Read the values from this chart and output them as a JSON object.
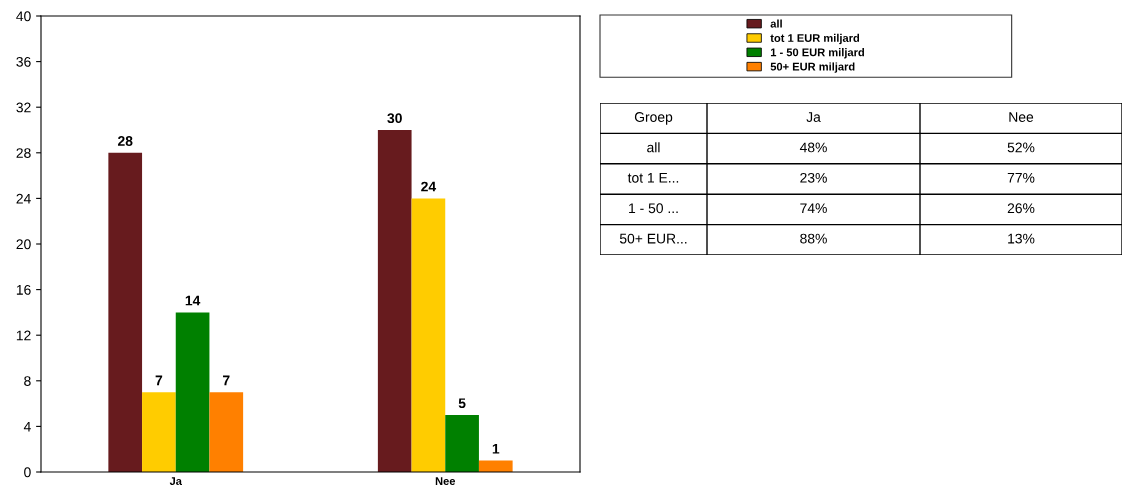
{
  "chart_data": [
    {
      "type": "bar",
      "categories": [
        "Ja",
        "Nee"
      ],
      "series": [
        {
          "name": "all",
          "color": "#671b1e",
          "values": [
            28,
            30
          ]
        },
        {
          "name": "tot 1 EUR miljard",
          "color": "#ffcc00",
          "values": [
            7,
            24
          ]
        },
        {
          "name": "1 - 50 EUR miljard",
          "color": "#008000",
          "values": [
            14,
            5
          ]
        },
        {
          "name": "50+ EUR miljard",
          "color": "#ff8000",
          "values": [
            7,
            1
          ]
        }
      ],
      "ylim": [
        0,
        40
      ],
      "yticks": [
        0,
        4,
        8,
        12,
        16,
        20,
        24,
        28,
        32,
        36,
        40
      ],
      "data_labels": true,
      "legend": "top right",
      "grid": false
    },
    {
      "type": "other",
      "ylabel": "Groep",
      "categories": [
        "Ja",
        "Nee"
      ],
      "y_categories": [
        "all",
        "tot 1 E...",
        "1 - 50 ...",
        "50+ EUR..."
      ],
      "cell_labels": [
        [
          "48%",
          "52%"
        ],
        [
          "23%",
          "77%"
        ],
        [
          "74%",
          "26%"
        ],
        [
          "88%",
          "13%"
        ]
      ]
    }
  ]
}
